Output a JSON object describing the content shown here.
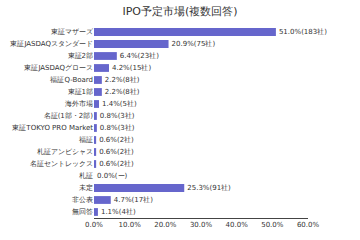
{
  "chart_data": {
    "type": "bar",
    "orientation": "horizontal",
    "title": "IPO予定市場(複数回答)",
    "categories": [
      "無回答",
      "非公表",
      "未定",
      "札証",
      "名証セントレックス",
      "札証アンビシャス",
      "福証",
      "東証TOKYO PRO Market",
      "名証(1部・2部)",
      "海外市場",
      "東証1部",
      "福証Q-Board",
      "東証JASDAQグロース",
      "東証2部",
      "東証JASDAQスタンダード",
      "東証マザーズ"
    ],
    "values": [
      1.1,
      4.7,
      25.3,
      0.0,
      0.6,
      0.6,
      0.6,
      0.8,
      0.8,
      1.4,
      2.2,
      2.2,
      4.2,
      6.4,
      20.9,
      51.0
    ],
    "value_labels": [
      "1.1%(4社)",
      "4.7%(17社)",
      "25.3%(91社)",
      "0.0%(ー)",
      "0.6%(2社)",
      "0.6%(2社)",
      "0.6%(2社)",
      "0.8%(3社)",
      "0.8%(3社)",
      "1.4%(5社)",
      "2.2%(8社)",
      "2.2%(8社)",
      "4.2%(15社)",
      "6.4%(23社)",
      "20.9%(75社)",
      "51.0%(183社)"
    ],
    "data_labels": true,
    "color": "#6666cc",
    "xlim": [
      0,
      60
    ],
    "xticks": [
      {
        "value": 0,
        "label": "0.0%"
      },
      {
        "value": 10,
        "label": "10.0%"
      },
      {
        "value": 20,
        "label": "20.0%"
      },
      {
        "value": 30,
        "label": "30.0%"
      },
      {
        "value": 40,
        "label": "40.0%"
      },
      {
        "value": 50,
        "label": "50.0%"
      },
      {
        "value": 60,
        "label": "60.0%"
      }
    ],
    "grid": false
  }
}
